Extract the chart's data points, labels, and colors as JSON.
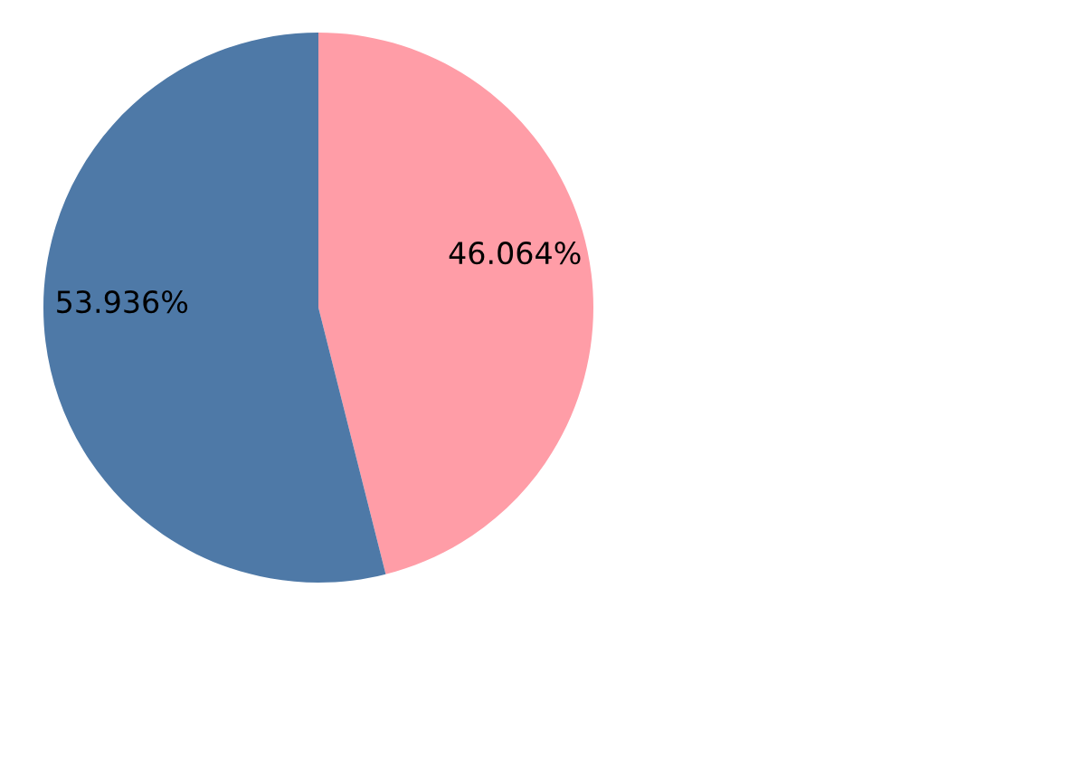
{
  "chart_data": {
    "type": "pie",
    "categories": [
      null,
      null
    ],
    "values": [
      46.064,
      53.936
    ],
    "colors": [
      "#ff9da7",
      "#4e79a7"
    ],
    "value_labels": [
      "46.064%",
      "53.936%"
    ]
  }
}
